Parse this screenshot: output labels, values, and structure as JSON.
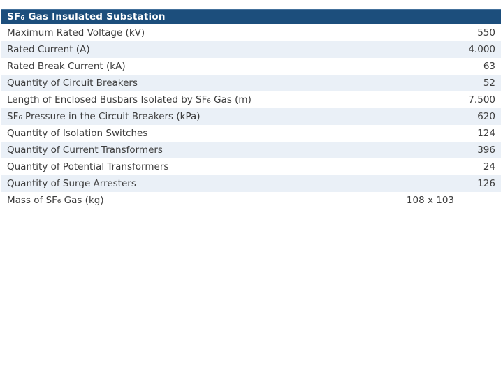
{
  "table": {
    "title": "SF₆ Gas Insulated Substation",
    "rows": [
      {
        "label": "Maximum Rated Voltage (kV)",
        "value": "550"
      },
      {
        "label": "Rated Current (A)",
        "value": "4.000"
      },
      {
        "label": "Rated Break Current (kA)",
        "value": "63"
      },
      {
        "label": "Quantity of Circuit Breakers",
        "value": "52"
      },
      {
        "label": "Length of Enclosed Busbars Isolated by SF₆ Gas (m)",
        "value": "7.500"
      },
      {
        "label": "SF₆ Pressure in the Circuit Breakers (kPa)",
        "value": "620"
      },
      {
        "label": "Quantity of Isolation Switches",
        "value": "124"
      },
      {
        "label": "Quantity of Current Transformers",
        "value": "396"
      },
      {
        "label": "Quantity of Potential Transformers",
        "value": "24"
      },
      {
        "label": "Quantity of Surge Arresters",
        "value": "126"
      },
      {
        "label": "Mass of SF₆ Gas (kg)",
        "value": "108 x 103",
        "value_inset": true
      }
    ]
  },
  "colors": {
    "header_bg": "#1C4E7C",
    "header_text": "#FFFFFF",
    "alt_row_bg": "#EAF0F7",
    "row_bg": "#FFFFFF",
    "text": "#3D3D3D"
  }
}
